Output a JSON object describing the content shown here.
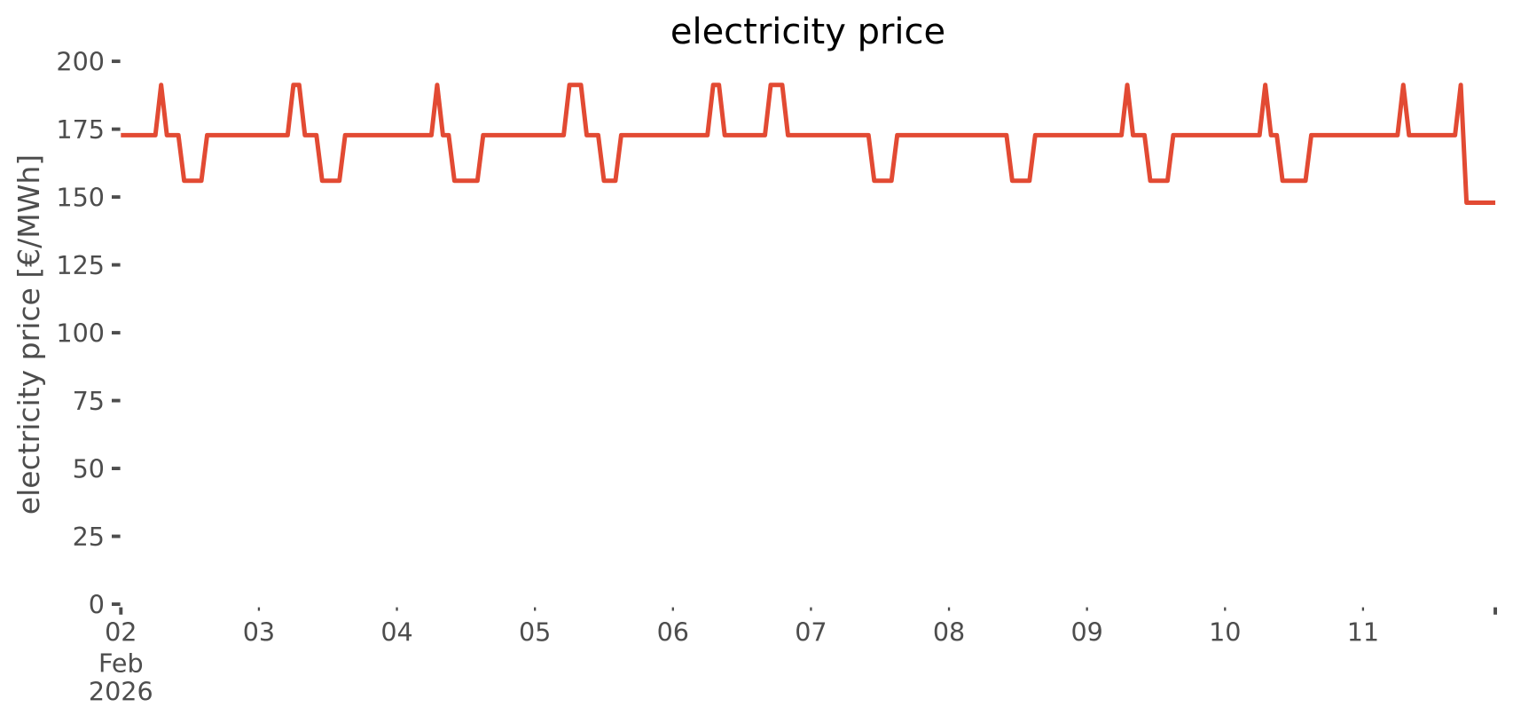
{
  "page": {
    "background": "#ffffff"
  },
  "chart_data": {
    "type": "line",
    "title": "electricity price",
    "xlabel": "",
    "ylabel": "electricity price [€/MWh]",
    "x_start": "2026-02-02 00:00",
    "x_freq_hours": 1,
    "values": [
      172.8,
      172.8,
      172.8,
      172.8,
      172.8,
      172.8,
      172.8,
      191.3,
      172.8,
      172.8,
      172.8,
      156.0,
      156.0,
      156.0,
      156.0,
      172.8,
      172.8,
      172.8,
      172.8,
      172.8,
      172.8,
      172.8,
      172.8,
      172.8,
      172.8,
      172.8,
      172.8,
      172.8,
      172.8,
      172.8,
      191.3,
      191.3,
      172.8,
      172.8,
      172.8,
      156.0,
      156.0,
      156.0,
      156.0,
      172.8,
      172.8,
      172.8,
      172.8,
      172.8,
      172.8,
      172.8,
      172.8,
      172.8,
      172.8,
      172.8,
      172.8,
      172.8,
      172.8,
      172.8,
      172.8,
      191.3,
      172.8,
      172.8,
      156.0,
      156.0,
      156.0,
      156.0,
      156.0,
      172.8,
      172.8,
      172.8,
      172.8,
      172.8,
      172.8,
      172.8,
      172.8,
      172.8,
      172.8,
      172.8,
      172.8,
      172.8,
      172.8,
      172.8,
      191.3,
      191.3,
      191.3,
      172.8,
      172.8,
      172.8,
      156.0,
      156.0,
      156.0,
      172.8,
      172.8,
      172.8,
      172.8,
      172.8,
      172.8,
      172.8,
      172.8,
      172.8,
      172.8,
      172.8,
      172.8,
      172.8,
      172.8,
      172.8,
      172.8,
      191.3,
      191.3,
      172.8,
      172.8,
      172.8,
      172.8,
      172.8,
      172.8,
      172.8,
      172.8,
      191.3,
      191.3,
      191.3,
      172.8,
      172.8,
      172.8,
      172.8,
      172.8,
      172.8,
      172.8,
      172.8,
      172.8,
      172.8,
      172.8,
      172.8,
      172.8,
      172.8,
      172.8,
      156.0,
      156.0,
      156.0,
      156.0,
      172.8,
      172.8,
      172.8,
      172.8,
      172.8,
      172.8,
      172.8,
      172.8,
      172.8,
      172.8,
      172.8,
      172.8,
      172.8,
      172.8,
      172.8,
      172.8,
      172.8,
      172.8,
      172.8,
      172.8,
      156.0,
      156.0,
      156.0,
      156.0,
      172.8,
      172.8,
      172.8,
      172.8,
      172.8,
      172.8,
      172.8,
      172.8,
      172.8,
      172.8,
      172.8,
      172.8,
      172.8,
      172.8,
      172.8,
      172.8,
      191.3,
      172.8,
      172.8,
      172.8,
      156.0,
      156.0,
      156.0,
      156.0,
      172.8,
      172.8,
      172.8,
      172.8,
      172.8,
      172.8,
      172.8,
      172.8,
      172.8,
      172.8,
      172.8,
      172.8,
      172.8,
      172.8,
      172.8,
      172.8,
      191.3,
      172.8,
      172.8,
      156.0,
      156.0,
      156.0,
      156.0,
      156.0,
      172.8,
      172.8,
      172.8,
      172.8,
      172.8,
      172.8,
      172.8,
      172.8,
      172.8,
      172.8,
      172.8,
      172.8,
      172.8,
      172.8,
      172.8,
      172.8,
      191.3,
      172.8,
      172.8,
      172.8,
      172.8,
      172.8,
      172.8,
      172.8,
      172.8,
      172.8,
      191.3,
      147.9,
      147.9,
      147.9,
      147.9,
      147.9,
      147.9
    ],
    "y_ticks": [
      0,
      25,
      50,
      75,
      100,
      125,
      150,
      175,
      200
    ],
    "x_ticks": [
      {
        "label": "02",
        "hour": 0,
        "major": true,
        "sublabels": [
          "Feb",
          "2026"
        ]
      },
      {
        "label": "03",
        "hour": 24,
        "major": false,
        "sublabels": []
      },
      {
        "label": "04",
        "hour": 48,
        "major": false,
        "sublabels": []
      },
      {
        "label": "05",
        "hour": 72,
        "major": false,
        "sublabels": []
      },
      {
        "label": "06",
        "hour": 96,
        "major": false,
        "sublabels": []
      },
      {
        "label": "07",
        "hour": 120,
        "major": false,
        "sublabels": []
      },
      {
        "label": "08",
        "hour": 144,
        "major": false,
        "sublabels": []
      },
      {
        "label": "09",
        "hour": 168,
        "major": false,
        "sublabels": []
      },
      {
        "label": "10",
        "hour": 192,
        "major": false,
        "sublabels": []
      },
      {
        "label": "11",
        "hour": 216,
        "major": false,
        "sublabels": []
      },
      {
        "label": "",
        "hour": 239,
        "major": true,
        "sublabels": []
      }
    ],
    "ylim": [
      0,
      202
    ],
    "xlim_hours": [
      0,
      239
    ],
    "grid": false,
    "legend": null,
    "line_color": "#e24a33",
    "tick_text_color": "#4d4d4d",
    "title_color": "#000000"
  }
}
